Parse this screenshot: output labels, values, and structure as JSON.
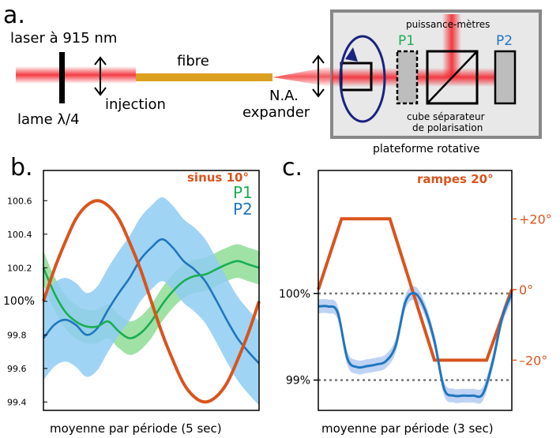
{
  "panel_a": {
    "letter": "a.",
    "laser_label": "laser à 915 nm",
    "waveplate_label": "lame λ/4",
    "injection_label": "injection",
    "fiber_label": "fibre",
    "na_label": "N.A.",
    "expander_label": "expander",
    "powermeters_label": "puissance-mètres",
    "p1_label": "P1",
    "p2_label": "P2",
    "cube_label_line1": "cube séparateur",
    "cube_label_line2": "de polarisation",
    "platform_label": "plateforme rotative"
  },
  "panel_b": {
    "letter": "b.",
    "xlabel": "moyenne par période (5 sec)"
  },
  "panel_c": {
    "letter": "c.",
    "xlabel": "moyenne par période (3 sec)"
  },
  "colors": {
    "orange": "#d9541e",
    "green": "#1aae52",
    "blue": "#1f76be",
    "green_band": "#8fdc96",
    "blue_band": "#8fcdf2",
    "blue_band_c": "#b7cef3",
    "fiber": "#dca020",
    "laser": "#f2262e"
  },
  "chart_data": [
    {
      "type": "line",
      "panel": "b",
      "title": "",
      "xlabel": "moyenne par période (5 sec)",
      "ylabel": "",
      "ylim": [
        99.35,
        100.78
      ],
      "yticks": [
        "99.4",
        "99.6",
        "99.8",
        "100%",
        "100.2",
        "100.4",
        "100.6"
      ],
      "ytick_values": [
        99.4,
        99.6,
        99.8,
        100.0,
        100.2,
        100.4,
        100.6
      ],
      "legend": [
        "sinus 10°",
        "P1",
        "P2"
      ],
      "legend_position": "top-right",
      "x": [
        0,
        0.05,
        0.1,
        0.15,
        0.2,
        0.25,
        0.3,
        0.35,
        0.4,
        0.45,
        0.5,
        0.55,
        0.6,
        0.65,
        0.7,
        0.75,
        0.8,
        0.85,
        0.9,
        0.95,
        1.0
      ],
      "series": [
        {
          "name": "sinus 10°",
          "values": [
            100.0,
            100.19,
            100.35,
            100.49,
            100.57,
            100.6,
            100.57,
            100.49,
            100.35,
            100.19,
            100.0,
            99.81,
            99.65,
            99.51,
            99.43,
            99.4,
            99.43,
            99.51,
            99.65,
            99.81,
            100.0
          ]
        },
        {
          "name": "P1",
          "values": [
            100.2,
            100.05,
            99.94,
            99.88,
            99.85,
            99.85,
            99.88,
            99.82,
            99.78,
            99.81,
            99.88,
            99.98,
            100.06,
            100.12,
            100.15,
            100.16,
            100.19,
            100.22,
            100.24,
            100.22,
            100.2
          ],
          "band": 0.1
        },
        {
          "name": "P2",
          "values": [
            99.78,
            99.86,
            99.89,
            99.86,
            99.8,
            99.84,
            99.95,
            100.05,
            100.14,
            100.25,
            100.32,
            100.37,
            100.32,
            100.24,
            100.19,
            100.12,
            100.01,
            99.89,
            99.78,
            99.7,
            99.63
          ],
          "band": 0.25
        }
      ]
    },
    {
      "type": "line",
      "panel": "c",
      "title": "",
      "xlabel": "moyenne par période (3 sec)",
      "yticks_left": [
        "100%",
        "99%"
      ],
      "ytick_left_values": [
        100,
        99
      ],
      "ylim_left": [
        98.65,
        101.42
      ],
      "yticks_right": [
        "+20°",
        "0°",
        "–20°"
      ],
      "ytick_right_values": [
        20,
        0,
        -20
      ],
      "ylim_right": [
        -34.2,
        33.7
      ],
      "reference_lines": [
        100,
        99
      ],
      "legend": [
        "rampes 20°"
      ],
      "legend_position": "top-right",
      "x": [
        0,
        0.05,
        0.1,
        0.15,
        0.2,
        0.25,
        0.3,
        0.35,
        0.4,
        0.45,
        0.5,
        0.55,
        0.6,
        0.65,
        0.7,
        0.75,
        0.8,
        0.85,
        0.9,
        0.95,
        1.0
      ],
      "series": [
        {
          "name": "rampes 20°",
          "axis": "right",
          "x": [
            0,
            0.12,
            0.37,
            0.6,
            0.87,
            1.0
          ],
          "values": [
            0,
            20,
            20,
            -20,
            -20,
            0
          ]
        },
        {
          "name": "P",
          "axis": "left",
          "values": [
            99.85,
            99.85,
            99.78,
            99.25,
            99.15,
            99.16,
            99.18,
            99.22,
            99.4,
            99.9,
            100.0,
            99.82,
            99.45,
            98.9,
            98.82,
            98.82,
            98.82,
            98.84,
            99.2,
            99.72,
            100.0
          ],
          "band": 0.08
        }
      ]
    }
  ]
}
